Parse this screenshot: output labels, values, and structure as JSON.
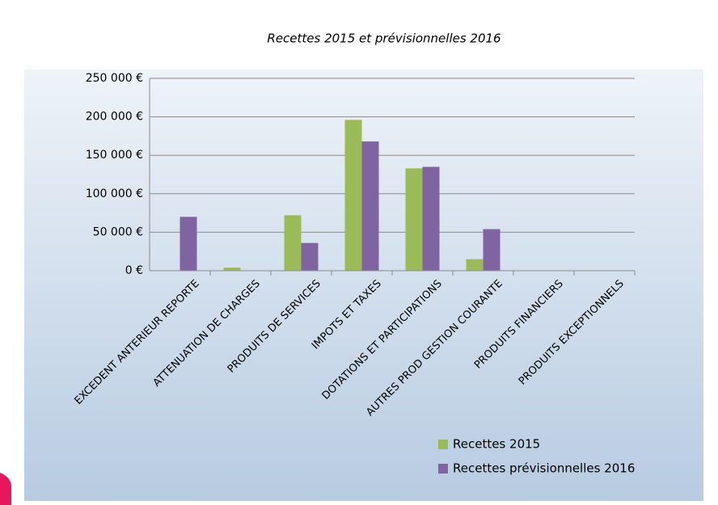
{
  "chart_data": {
    "type": "bar",
    "title": "Recettes 2015 et prévisionnelles 2016",
    "categories": [
      "EXCEDENT ANTERIEUR REPORTE",
      "ATTENUATION DE CHARGES",
      "PRODUITS DE SERVICES",
      "IMPOTS ET TAXES",
      "DOTATIONS ET PARTICIPATIONS",
      "AUTRES PROD GESTION COURANTE",
      "PRODUITS FINANCIERS",
      "PRODUITS EXCEPTIONNELS"
    ],
    "series": [
      {
        "name": "Recettes 2015",
        "color": "#9bbb59",
        "values": [
          0,
          4000,
          72000,
          196000,
          133000,
          15000,
          500,
          0
        ]
      },
      {
        "name": "Recettes prévisionnelles 2016",
        "color": "#8064a2",
        "values": [
          70000,
          0,
          36000,
          168000,
          135000,
          54000,
          0,
          0
        ]
      }
    ],
    "ylim": [
      0,
      250000
    ],
    "yticks": [
      {
        "value": 0,
        "label": "0 €"
      },
      {
        "value": 50000,
        "label": "50 000 €"
      },
      {
        "value": 100000,
        "label": "100 000 €"
      },
      {
        "value": 150000,
        "label": "150 000 €"
      },
      {
        "value": 200000,
        "label": "200 000 €"
      },
      {
        "value": 250000,
        "label": "250 000 €"
      }
    ],
    "grid": true,
    "legend": "bottom-right"
  }
}
